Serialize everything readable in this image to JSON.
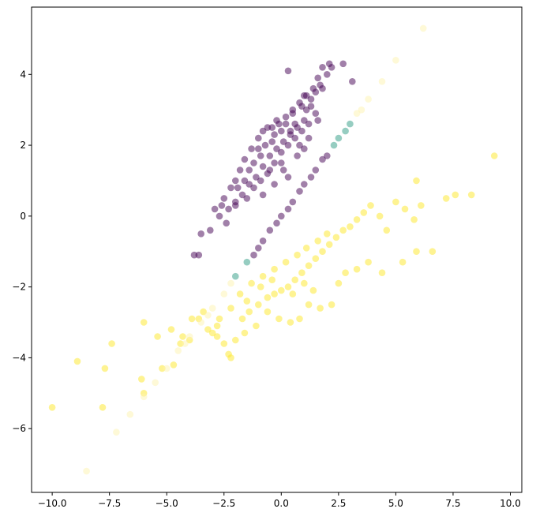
{
  "chart_data": {
    "type": "scatter",
    "title": "",
    "xlabel": "",
    "ylabel": "",
    "xlim": [
      -10.9,
      10.5
    ],
    "ylim": [
      -7.8,
      5.9
    ],
    "xticks": [
      -10.0,
      -7.5,
      -5.0,
      -2.5,
      0.0,
      2.5,
      5.0,
      7.5,
      10.0
    ],
    "yticks": [
      -6,
      -4,
      -2,
      0,
      2,
      4
    ],
    "xtick_labels": [
      "−10.0",
      "−7.5",
      "−5.0",
      "−2.5",
      "0.0",
      "2.5",
      "5.0",
      "7.5",
      "10.0"
    ],
    "ytick_labels": [
      "−6",
      "−4",
      "−2",
      "0",
      "2",
      "4"
    ],
    "grid": false,
    "legend": "none",
    "colormap": "viridis",
    "marker_alpha": 0.5,
    "colors": {
      "low": "#440154",
      "high": "#fde725"
    },
    "series": [
      {
        "points": [
          [
            0.3,
            4.1
          ],
          [
            1.8,
            4.2
          ],
          [
            2.1,
            4.3
          ],
          [
            2.7,
            4.3
          ],
          [
            3.1,
            3.8
          ],
          [
            2.2,
            4.2
          ],
          [
            1.6,
            3.9
          ],
          [
            1.8,
            3.6
          ],
          [
            1.5,
            3.5
          ],
          [
            1.0,
            3.4
          ],
          [
            1.1,
            3.0
          ],
          [
            0.8,
            3.2
          ],
          [
            0.5,
            2.9
          ],
          [
            0.2,
            2.8
          ],
          [
            -0.1,
            2.6
          ],
          [
            -0.4,
            2.5
          ],
          [
            -0.8,
            2.4
          ],
          [
            -1.0,
            2.2
          ],
          [
            -1.3,
            1.9
          ],
          [
            -1.6,
            1.6
          ],
          [
            -1.8,
            1.3
          ],
          [
            -2.0,
            1.0
          ],
          [
            -2.2,
            0.8
          ],
          [
            -2.5,
            0.5
          ],
          [
            -2.6,
            0.3
          ],
          [
            -2.9,
            0.2
          ],
          [
            -3.1,
            -0.4
          ],
          [
            -3.5,
            -0.5
          ],
          [
            -3.8,
            -1.1
          ],
          [
            -3.6,
            -1.1
          ],
          [
            -2.4,
            -0.2
          ],
          [
            -2.0,
            0.4
          ],
          [
            -1.5,
            0.5
          ],
          [
            -1.2,
            0.8
          ],
          [
            -0.9,
            1.0
          ],
          [
            -0.6,
            1.2
          ],
          [
            -0.3,
            1.5
          ],
          [
            0.0,
            1.8
          ],
          [
            0.3,
            2.0
          ],
          [
            0.6,
            2.2
          ],
          [
            0.9,
            2.4
          ],
          [
            1.2,
            2.6
          ],
          [
            1.5,
            2.9
          ],
          [
            1.3,
            3.1
          ],
          [
            1.0,
            2.7
          ],
          [
            0.7,
            2.5
          ],
          [
            0.4,
            2.3
          ],
          [
            0.1,
            2.1
          ],
          [
            -0.2,
            1.9
          ],
          [
            -0.5,
            1.7
          ],
          [
            -0.8,
            1.4
          ],
          [
            -1.1,
            1.1
          ],
          [
            -1.4,
            0.9
          ],
          [
            -1.7,
            0.6
          ],
          [
            -2.0,
            0.3
          ],
          [
            -1.2,
            1.5
          ],
          [
            -0.7,
            2.0
          ],
          [
            -0.3,
            2.3
          ],
          [
            0.2,
            2.6
          ],
          [
            0.5,
            3.0
          ],
          [
            0.9,
            3.1
          ],
          [
            1.3,
            3.3
          ],
          [
            1.7,
            3.7
          ],
          [
            2.0,
            4.0
          ],
          [
            1.4,
            3.6
          ],
          [
            1.1,
            3.4
          ],
          [
            0.6,
            2.6
          ],
          [
            0.0,
            2.4
          ],
          [
            -0.4,
            2.1
          ],
          [
            -0.9,
            1.7
          ],
          [
            -1.4,
            1.3
          ],
          [
            -1.0,
            1.9
          ],
          [
            -0.6,
            2.5
          ],
          [
            -0.2,
            2.7
          ],
          [
            0.4,
            2.4
          ],
          [
            0.8,
            2.0
          ],
          [
            1.2,
            2.2
          ],
          [
            1.6,
            2.7
          ],
          [
            0.0,
            1.5
          ],
          [
            -0.5,
            1.3
          ],
          [
            -1.6,
            1.0
          ],
          [
            -1.9,
            0.8
          ],
          [
            -2.3,
            0.2
          ],
          [
            -2.7,
            0.0
          ],
          [
            -0.3,
            0.9
          ],
          [
            0.1,
            1.3
          ],
          [
            0.7,
            1.7
          ],
          [
            1.0,
            1.9
          ],
          [
            0.3,
            1.1
          ],
          [
            -0.8,
            0.6
          ]
        ],
        "values": "low"
      },
      {
        "points": [
          [
            -10.0,
            -5.4
          ],
          [
            -8.9,
            -4.1
          ],
          [
            -7.7,
            -4.3
          ],
          [
            -7.8,
            -5.4
          ],
          [
            -7.4,
            -3.6
          ],
          [
            -6.0,
            -3.0
          ],
          [
            -6.1,
            -4.6
          ],
          [
            -6.0,
            -5.0
          ],
          [
            -5.2,
            -4.3
          ],
          [
            -4.7,
            -4.2
          ],
          [
            -4.4,
            -3.6
          ],
          [
            -4.0,
            -3.5
          ],
          [
            -3.6,
            -2.9
          ],
          [
            -3.2,
            -3.2
          ],
          [
            -2.8,
            -3.4
          ],
          [
            -2.5,
            -3.6
          ],
          [
            -2.2,
            -4.0
          ],
          [
            -2.0,
            -3.5
          ],
          [
            -1.7,
            -2.9
          ],
          [
            -1.4,
            -2.7
          ],
          [
            -1.0,
            -2.5
          ],
          [
            -0.6,
            -2.3
          ],
          [
            -0.3,
            -2.2
          ],
          [
            0.0,
            -2.1
          ],
          [
            0.3,
            -2.0
          ],
          [
            0.6,
            -1.8
          ],
          [
            0.9,
            -1.6
          ],
          [
            1.2,
            -1.4
          ],
          [
            1.5,
            -1.2
          ],
          [
            1.8,
            -1.0
          ],
          [
            2.1,
            -0.8
          ],
          [
            2.4,
            -0.6
          ],
          [
            2.7,
            -0.4
          ],
          [
            3.0,
            -0.3
          ],
          [
            3.3,
            -0.1
          ],
          [
            3.6,
            0.1
          ],
          [
            3.9,
            0.3
          ],
          [
            4.3,
            0.0
          ],
          [
            4.6,
            -0.4
          ],
          [
            5.0,
            0.4
          ],
          [
            5.4,
            0.2
          ],
          [
            5.8,
            -0.1
          ],
          [
            6.1,
            0.3
          ],
          [
            5.9,
            1.0
          ],
          [
            7.2,
            0.5
          ],
          [
            7.6,
            0.6
          ],
          [
            8.3,
            0.6
          ],
          [
            9.3,
            1.7
          ],
          [
            6.6,
            -1.0
          ],
          [
            5.9,
            -1.0
          ],
          [
            5.3,
            -1.3
          ],
          [
            4.4,
            -1.6
          ],
          [
            3.8,
            -1.3
          ],
          [
            3.3,
            -1.5
          ],
          [
            2.8,
            -1.6
          ],
          [
            2.2,
            -2.5
          ],
          [
            1.7,
            -2.6
          ],
          [
            1.2,
            -2.5
          ],
          [
            0.8,
            -2.9
          ],
          [
            0.4,
            -3.0
          ],
          [
            -0.1,
            -2.9
          ],
          [
            -0.6,
            -2.7
          ],
          [
            -1.1,
            -3.1
          ],
          [
            -1.6,
            -3.3
          ],
          [
            -2.3,
            -3.9
          ],
          [
            -2.8,
            -3.1
          ],
          [
            -3.4,
            -2.7
          ],
          [
            -3.9,
            -2.9
          ],
          [
            -4.3,
            -3.4
          ],
          [
            -4.8,
            -3.2
          ],
          [
            -5.4,
            -3.4
          ],
          [
            -1.8,
            -2.2
          ],
          [
            -1.3,
            -1.9
          ],
          [
            -0.8,
            -1.7
          ],
          [
            -0.3,
            -1.5
          ],
          [
            0.2,
            -1.3
          ],
          [
            0.7,
            -1.1
          ],
          [
            1.1,
            -0.9
          ],
          [
            1.6,
            -0.7
          ],
          [
            2.0,
            -0.5
          ],
          [
            -2.2,
            -2.6
          ],
          [
            -2.7,
            -2.9
          ],
          [
            -3.0,
            -3.3
          ],
          [
            -1.5,
            -2.4
          ],
          [
            -0.9,
            -2.0
          ],
          [
            -0.4,
            -1.8
          ],
          [
            0.5,
            -2.2
          ],
          [
            1.0,
            -1.9
          ],
          [
            1.4,
            -2.1
          ],
          [
            2.5,
            -1.9
          ]
        ],
        "values": "high"
      },
      {
        "points": [
          [
            -8.5,
            -7.2
          ],
          [
            -7.2,
            -6.1
          ],
          [
            -6.6,
            -5.6
          ],
          [
            -6.0,
            -5.1
          ],
          [
            -5.5,
            -4.7
          ],
          [
            -5.0,
            -4.3
          ],
          [
            -4.5,
            -3.8
          ],
          [
            -4.0,
            -3.4
          ],
          [
            -3.5,
            -3.0
          ],
          [
            -3.0,
            -2.6
          ],
          [
            -2.5,
            -2.2
          ],
          [
            -2.0,
            -1.7
          ],
          [
            -1.5,
            -1.3
          ],
          [
            -1.0,
            -0.9
          ],
          [
            -0.5,
            -0.4
          ],
          [
            0.0,
            0.0
          ],
          [
            0.5,
            0.4
          ],
          [
            1.0,
            0.9
          ],
          [
            1.5,
            1.3
          ],
          [
            2.0,
            1.7
          ],
          [
            2.5,
            2.2
          ],
          [
            3.0,
            2.6
          ],
          [
            3.5,
            3.0
          ],
          [
            3.8,
            3.3
          ],
          [
            4.4,
            3.8
          ],
          [
            5.0,
            4.4
          ],
          [
            6.2,
            5.3
          ],
          [
            -4.2,
            -3.6
          ],
          [
            -3.2,
            -2.8
          ],
          [
            -2.2,
            -1.9
          ],
          [
            -1.2,
            -1.1
          ],
          [
            -0.2,
            -0.2
          ],
          [
            0.8,
            0.7
          ],
          [
            1.8,
            1.6
          ],
          [
            2.8,
            2.4
          ],
          [
            3.3,
            2.9
          ],
          [
            -0.8,
            -0.7
          ],
          [
            0.3,
            0.2
          ],
          [
            1.3,
            1.1
          ],
          [
            2.3,
            2.0
          ]
        ],
        "values": "mixed"
      }
    ]
  }
}
